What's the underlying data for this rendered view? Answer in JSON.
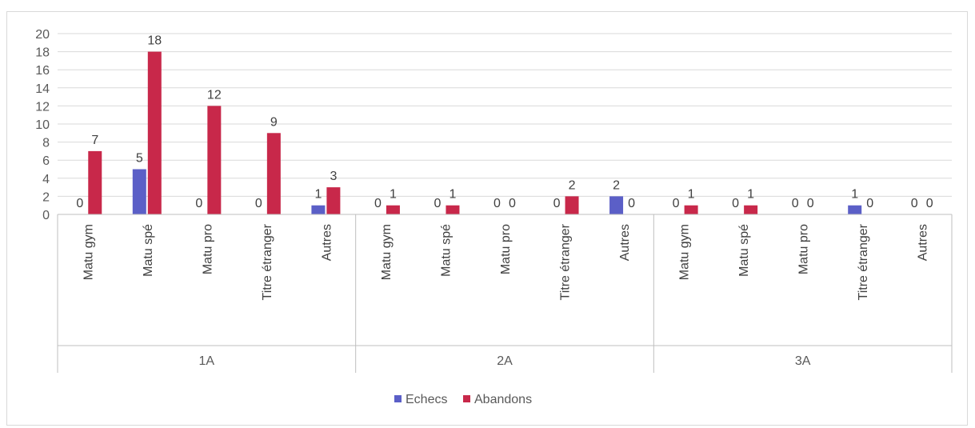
{
  "chart_data": {
    "type": "bar",
    "title": "",
    "xlabel": "",
    "ylabel": "",
    "ylim": [
      0,
      20
    ],
    "yticks": [
      0,
      2,
      4,
      6,
      8,
      10,
      12,
      14,
      16,
      18,
      20
    ],
    "grid": true,
    "legend_position": "bottom",
    "groups": [
      "1A",
      "2A",
      "3A"
    ],
    "categories": [
      "Matu gym",
      "Matu spé",
      "Matu pro",
      "Titre étranger",
      "Autres"
    ],
    "series": [
      {
        "name": "Echecs",
        "color": "#5b5fc7",
        "values": [
          [
            0,
            5,
            0,
            0,
            1
          ],
          [
            0,
            0,
            0,
            0,
            2
          ],
          [
            0,
            0,
            0,
            1,
            0
          ]
        ]
      },
      {
        "name": "Abandons",
        "color": "#c8284a",
        "values": [
          [
            7,
            18,
            12,
            9,
            3
          ],
          [
            1,
            1,
            0,
            2,
            0
          ],
          [
            1,
            1,
            0,
            0,
            0
          ]
        ]
      }
    ]
  }
}
